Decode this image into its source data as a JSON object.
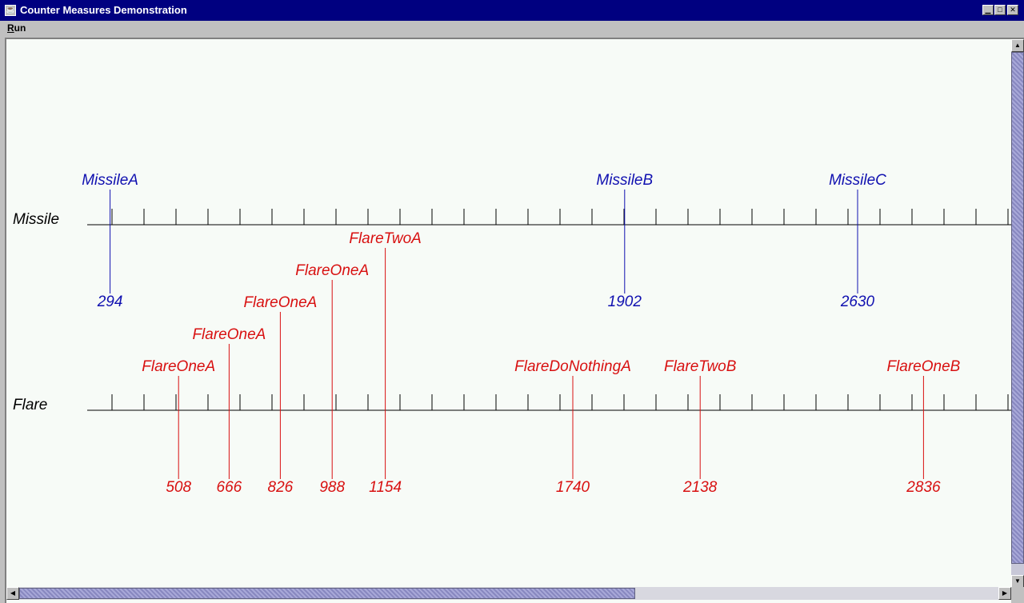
{
  "window": {
    "title": "Counter Measures Demonstration"
  },
  "menu": {
    "run_label": "Run",
    "run_mnemonic": "R",
    "run_rest": "un"
  },
  "icons": {
    "app": "app-icon",
    "minimize": "minimize-icon",
    "maximize": "maximize-icon",
    "close": "close-icon"
  },
  "colors": {
    "missile": "#1010b0",
    "flare": "#d81010",
    "axis": "#000000",
    "background": "#f7fbf7",
    "titlebar": "#000080"
  },
  "timeline": {
    "missile_track": {
      "label": "Missile",
      "events": [
        {
          "name": "MissileA",
          "time": 294
        },
        {
          "name": "MissileB",
          "time": 1902
        },
        {
          "name": "MissileC",
          "time": 2630
        }
      ]
    },
    "flare_track": {
      "label": "Flare",
      "events": [
        {
          "name": "FlareOneA",
          "time": 508
        },
        {
          "name": "FlareOneA",
          "time": 666
        },
        {
          "name": "FlareOneA",
          "time": 826
        },
        {
          "name": "FlareOneA",
          "time": 988
        },
        {
          "name": "FlareTwoA",
          "time": 1154
        },
        {
          "name": "FlareDoNothingA",
          "time": 1740
        },
        {
          "name": "FlareTwoB",
          "time": 2138
        },
        {
          "name": "FlareOneB",
          "time": 2836
        }
      ]
    },
    "tick_interval": 100
  }
}
